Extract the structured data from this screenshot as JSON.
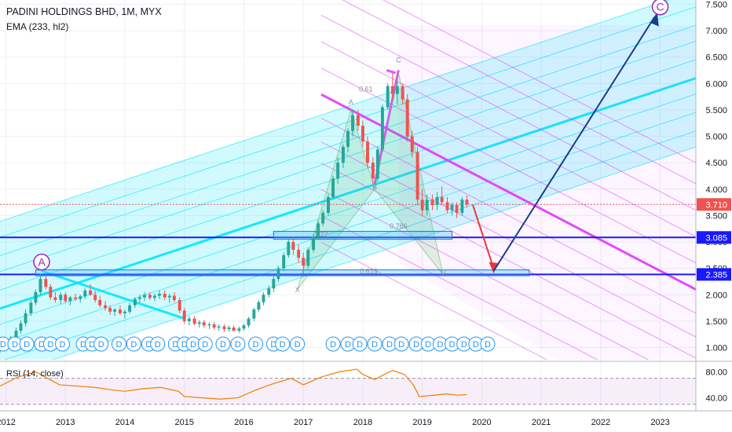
{
  "header": {
    "title": "PADINI HOLDINGS BHD, 1M, MYX",
    "indicator": "EMA (233, hl2)",
    "rsi_label": "RSI (14, close)"
  },
  "colors": {
    "up": "#26a69a",
    "down": "#ef5350",
    "channel_cyan": "#00e5ff",
    "channel_magenta": "#e040fb",
    "support_blue": "#1a1aff",
    "arrow_red": "#e53935",
    "arrow_navy": "#1a3c8f",
    "rsi_line": "#f57c00"
  },
  "chart_data": {
    "type": "candlestick",
    "x_ticks": [
      "2012",
      "2013",
      "2014",
      "2015",
      "2016",
      "2017",
      "2018",
      "2019",
      "2020",
      "2021",
      "2022",
      "2023"
    ],
    "y_ticks": [
      "7.500",
      "7.000",
      "6.500",
      "6.000",
      "5.500",
      "5.000",
      "4.500",
      "4.000",
      "3.500",
      "3.000",
      "2.500",
      "2.000",
      "1.500",
      "1.000"
    ],
    "ylim": [
      0.77,
      7.58
    ],
    "xlim": [
      2011.9,
      2023.6
    ],
    "price_labels": [
      {
        "value": 3.71,
        "text": "3.710",
        "color": "#ef5350"
      },
      {
        "value": 3.085,
        "text": "3.085",
        "color": "#1a1aff"
      },
      {
        "value": 2.385,
        "text": "2.385",
        "color": "#1a1aff"
      }
    ],
    "support_levels": [
      3.085,
      2.385
    ],
    "current_price": 3.71,
    "wave_labels": [
      {
        "text": "A",
        "t": 2012.6,
        "v": 2.62
      },
      {
        "text": "C",
        "t": 2023.0,
        "v": 7.45
      }
    ],
    "pattern_labels": [
      {
        "text": "X",
        "t": 2016.9,
        "v": 2.05
      },
      {
        "text": "A",
        "t": 2017.8,
        "v": 5.6
      },
      {
        "text": "B",
        "t": 2018.2,
        "v": 4.0
      },
      {
        "text": "C",
        "t": 2018.6,
        "v": 6.4
      },
      {
        "text": "D",
        "t": 2019.35,
        "v": 2.38
      },
      {
        "text": "0.618",
        "t": 2018.1,
        "v": 2.4
      },
      {
        "text": "0.786",
        "t": 2018.6,
        "v": 3.25
      },
      {
        "text": "0.61",
        "t": 2018.05,
        "v": 5.85
      },
      {
        "text": "1.27",
        "t": 2017.3,
        "v": 3.1
      }
    ],
    "dividend_marker": "D",
    "candles": [
      {
        "t": 2011.9,
        "o": 0.95,
        "h": 1.05,
        "l": 0.9,
        "c": 1.0
      },
      {
        "t": 2012.0,
        "o": 1.0,
        "h": 1.12,
        "l": 0.96,
        "c": 1.08
      },
      {
        "t": 2012.08,
        "o": 1.08,
        "h": 1.22,
        "l": 1.04,
        "c": 1.18
      },
      {
        "t": 2012.17,
        "o": 1.18,
        "h": 1.38,
        "l": 1.12,
        "c": 1.32
      },
      {
        "t": 2012.25,
        "o": 1.32,
        "h": 1.52,
        "l": 1.26,
        "c": 1.46
      },
      {
        "t": 2012.33,
        "o": 1.46,
        "h": 1.72,
        "l": 1.4,
        "c": 1.65
      },
      {
        "t": 2012.42,
        "o": 1.65,
        "h": 1.9,
        "l": 1.6,
        "c": 1.85
      },
      {
        "t": 2012.5,
        "o": 1.85,
        "h": 2.1,
        "l": 1.8,
        "c": 2.05
      },
      {
        "t": 2012.58,
        "o": 2.05,
        "h": 2.4,
        "l": 2.0,
        "c": 2.3
      },
      {
        "t": 2012.67,
        "o": 2.3,
        "h": 2.35,
        "l": 2.1,
        "c": 2.15
      },
      {
        "t": 2012.75,
        "o": 2.15,
        "h": 2.2,
        "l": 1.9,
        "c": 1.95
      },
      {
        "t": 2012.83,
        "o": 1.95,
        "h": 2.05,
        "l": 1.85,
        "c": 1.9
      },
      {
        "t": 2012.92,
        "o": 1.9,
        "h": 2.05,
        "l": 1.82,
        "c": 2.0
      },
      {
        "t": 2013.0,
        "o": 2.0,
        "h": 2.05,
        "l": 1.85,
        "c": 1.88
      },
      {
        "t": 2013.08,
        "o": 1.88,
        "h": 1.98,
        "l": 1.8,
        "c": 1.95
      },
      {
        "t": 2013.17,
        "o": 1.95,
        "h": 2.02,
        "l": 1.88,
        "c": 1.92
      },
      {
        "t": 2013.25,
        "o": 1.92,
        "h": 2.0,
        "l": 1.85,
        "c": 1.97
      },
      {
        "t": 2013.33,
        "o": 1.97,
        "h": 2.12,
        "l": 1.92,
        "c": 2.08
      },
      {
        "t": 2013.42,
        "o": 2.08,
        "h": 2.2,
        "l": 1.98,
        "c": 2.0
      },
      {
        "t": 2013.5,
        "o": 2.0,
        "h": 2.08,
        "l": 1.85,
        "c": 1.9
      },
      {
        "t": 2013.58,
        "o": 1.9,
        "h": 1.98,
        "l": 1.75,
        "c": 1.8
      },
      {
        "t": 2013.67,
        "o": 1.8,
        "h": 1.88,
        "l": 1.7,
        "c": 1.75
      },
      {
        "t": 2013.75,
        "o": 1.75,
        "h": 1.8,
        "l": 1.62,
        "c": 1.68
      },
      {
        "t": 2013.83,
        "o": 1.68,
        "h": 1.75,
        "l": 1.6,
        "c": 1.72
      },
      {
        "t": 2013.92,
        "o": 1.72,
        "h": 1.8,
        "l": 1.62,
        "c": 1.65
      },
      {
        "t": 2014.0,
        "o": 1.65,
        "h": 1.72,
        "l": 1.55,
        "c": 1.68
      },
      {
        "t": 2014.08,
        "o": 1.68,
        "h": 1.85,
        "l": 1.64,
        "c": 1.8
      },
      {
        "t": 2014.17,
        "o": 1.8,
        "h": 1.95,
        "l": 1.75,
        "c": 1.92
      },
      {
        "t": 2014.25,
        "o": 1.92,
        "h": 2.0,
        "l": 1.85,
        "c": 1.95
      },
      {
        "t": 2014.33,
        "o": 1.95,
        "h": 2.05,
        "l": 1.88,
        "c": 2.0
      },
      {
        "t": 2014.42,
        "o": 2.0,
        "h": 2.05,
        "l": 1.9,
        "c": 1.94
      },
      {
        "t": 2014.5,
        "o": 1.94,
        "h": 2.02,
        "l": 1.88,
        "c": 1.98
      },
      {
        "t": 2014.58,
        "o": 1.98,
        "h": 2.08,
        "l": 1.92,
        "c": 2.02
      },
      {
        "t": 2014.67,
        "o": 2.02,
        "h": 2.08,
        "l": 1.9,
        "c": 1.95
      },
      {
        "t": 2014.75,
        "o": 1.95,
        "h": 2.02,
        "l": 1.85,
        "c": 1.98
      },
      {
        "t": 2014.83,
        "o": 1.98,
        "h": 2.05,
        "l": 1.85,
        "c": 1.9
      },
      {
        "t": 2014.92,
        "o": 1.9,
        "h": 1.95,
        "l": 1.65,
        "c": 1.7
      },
      {
        "t": 2015.0,
        "o": 1.7,
        "h": 1.75,
        "l": 1.45,
        "c": 1.5
      },
      {
        "t": 2015.08,
        "o": 1.5,
        "h": 1.6,
        "l": 1.42,
        "c": 1.55
      },
      {
        "t": 2015.17,
        "o": 1.55,
        "h": 1.6,
        "l": 1.42,
        "c": 1.45
      },
      {
        "t": 2015.25,
        "o": 1.45,
        "h": 1.52,
        "l": 1.38,
        "c": 1.48
      },
      {
        "t": 2015.33,
        "o": 1.48,
        "h": 1.52,
        "l": 1.38,
        "c": 1.42
      },
      {
        "t": 2015.42,
        "o": 1.42,
        "h": 1.48,
        "l": 1.35,
        "c": 1.44
      },
      {
        "t": 2015.5,
        "o": 1.44,
        "h": 1.48,
        "l": 1.34,
        "c": 1.38
      },
      {
        "t": 2015.58,
        "o": 1.38,
        "h": 1.44,
        "l": 1.32,
        "c": 1.4
      },
      {
        "t": 2015.67,
        "o": 1.4,
        "h": 1.44,
        "l": 1.3,
        "c": 1.35
      },
      {
        "t": 2015.75,
        "o": 1.35,
        "h": 1.42,
        "l": 1.3,
        "c": 1.38
      },
      {
        "t": 2015.83,
        "o": 1.38,
        "h": 1.42,
        "l": 1.3,
        "c": 1.32
      },
      {
        "t": 2015.92,
        "o": 1.32,
        "h": 1.4,
        "l": 1.28,
        "c": 1.36
      },
      {
        "t": 2016.0,
        "o": 1.36,
        "h": 1.45,
        "l": 1.32,
        "c": 1.42
      },
      {
        "t": 2016.08,
        "o": 1.42,
        "h": 1.58,
        "l": 1.38,
        "c": 1.55
      },
      {
        "t": 2016.17,
        "o": 1.55,
        "h": 1.75,
        "l": 1.5,
        "c": 1.72
      },
      {
        "t": 2016.25,
        "o": 1.72,
        "h": 1.9,
        "l": 1.68,
        "c": 1.86
      },
      {
        "t": 2016.33,
        "o": 1.86,
        "h": 2.05,
        "l": 1.8,
        "c": 2.0
      },
      {
        "t": 2016.42,
        "o": 2.0,
        "h": 2.18,
        "l": 1.95,
        "c": 2.12
      },
      {
        "t": 2016.5,
        "o": 2.12,
        "h": 2.35,
        "l": 2.05,
        "c": 2.3
      },
      {
        "t": 2016.58,
        "o": 2.3,
        "h": 2.55,
        "l": 2.25,
        "c": 2.5
      },
      {
        "t": 2016.67,
        "o": 2.5,
        "h": 2.8,
        "l": 2.45,
        "c": 2.75
      },
      {
        "t": 2016.75,
        "o": 2.75,
        "h": 3.05,
        "l": 2.7,
        "c": 3.0
      },
      {
        "t": 2016.83,
        "o": 3.0,
        "h": 3.1,
        "l": 2.75,
        "c": 2.85
      },
      {
        "t": 2016.92,
        "o": 2.85,
        "h": 2.95,
        "l": 2.6,
        "c": 2.7
      },
      {
        "t": 2017.0,
        "o": 2.7,
        "h": 2.8,
        "l": 2.4,
        "c": 2.55
      },
      {
        "t": 2017.08,
        "o": 2.55,
        "h": 2.9,
        "l": 2.5,
        "c": 2.85
      },
      {
        "t": 2017.17,
        "o": 2.85,
        "h": 3.15,
        "l": 2.8,
        "c": 3.1
      },
      {
        "t": 2017.25,
        "o": 3.1,
        "h": 3.4,
        "l": 3.05,
        "c": 3.35
      },
      {
        "t": 2017.33,
        "o": 3.35,
        "h": 3.6,
        "l": 3.3,
        "c": 3.55
      },
      {
        "t": 2017.42,
        "o": 3.55,
        "h": 3.9,
        "l": 3.5,
        "c": 3.85
      },
      {
        "t": 2017.5,
        "o": 3.85,
        "h": 4.25,
        "l": 3.8,
        "c": 4.2
      },
      {
        "t": 2017.58,
        "o": 4.2,
        "h": 4.6,
        "l": 4.1,
        "c": 4.5
      },
      {
        "t": 2017.67,
        "o": 4.5,
        "h": 4.85,
        "l": 4.4,
        "c": 4.8
      },
      {
        "t": 2017.75,
        "o": 4.8,
        "h": 5.15,
        "l": 4.7,
        "c": 5.1
      },
      {
        "t": 2017.83,
        "o": 5.1,
        "h": 5.5,
        "l": 5.0,
        "c": 5.4
      },
      {
        "t": 2017.92,
        "o": 5.4,
        "h": 5.5,
        "l": 5.1,
        "c": 5.2
      },
      {
        "t": 2018.0,
        "o": 5.2,
        "h": 5.3,
        "l": 4.8,
        "c": 4.9
      },
      {
        "t": 2018.08,
        "o": 4.9,
        "h": 5.0,
        "l": 4.4,
        "c": 4.5
      },
      {
        "t": 2018.17,
        "o": 4.5,
        "h": 4.6,
        "l": 4.1,
        "c": 4.2
      },
      {
        "t": 2018.25,
        "o": 4.2,
        "h": 4.8,
        "l": 4.15,
        "c": 4.75
      },
      {
        "t": 2018.33,
        "o": 4.75,
        "h": 5.6,
        "l": 4.7,
        "c": 5.55
      },
      {
        "t": 2018.42,
        "o": 5.55,
        "h": 6.0,
        "l": 5.5,
        "c": 5.95
      },
      {
        "t": 2018.5,
        "o": 5.95,
        "h": 6.2,
        "l": 5.7,
        "c": 5.8
      },
      {
        "t": 2018.58,
        "o": 5.8,
        "h": 6.05,
        "l": 5.6,
        "c": 5.95
      },
      {
        "t": 2018.67,
        "o": 5.95,
        "h": 6.0,
        "l": 5.6,
        "c": 5.7
      },
      {
        "t": 2018.75,
        "o": 5.7,
        "h": 5.8,
        "l": 4.9,
        "c": 5.0
      },
      {
        "t": 2018.83,
        "o": 5.0,
        "h": 5.1,
        "l": 4.6,
        "c": 4.7
      },
      {
        "t": 2018.92,
        "o": 4.7,
        "h": 4.8,
        "l": 3.7,
        "c": 3.8
      },
      {
        "t": 2019.0,
        "o": 3.8,
        "h": 4.0,
        "l": 3.5,
        "c": 3.6
      },
      {
        "t": 2019.08,
        "o": 3.6,
        "h": 3.9,
        "l": 3.5,
        "c": 3.8
      },
      {
        "t": 2019.17,
        "o": 3.8,
        "h": 3.9,
        "l": 3.6,
        "c": 3.7
      },
      {
        "t": 2019.25,
        "o": 3.7,
        "h": 3.95,
        "l": 3.6,
        "c": 3.85
      },
      {
        "t": 2019.33,
        "o": 3.85,
        "h": 4.05,
        "l": 3.7,
        "c": 3.75
      },
      {
        "t": 2019.42,
        "o": 3.75,
        "h": 3.85,
        "l": 3.55,
        "c": 3.6
      },
      {
        "t": 2019.5,
        "o": 3.6,
        "h": 3.75,
        "l": 3.5,
        "c": 3.7
      },
      {
        "t": 2019.58,
        "o": 3.7,
        "h": 3.75,
        "l": 3.45,
        "c": 3.55
      },
      {
        "t": 2019.67,
        "o": 3.55,
        "h": 3.85,
        "l": 3.5,
        "c": 3.8
      },
      {
        "t": 2019.75,
        "o": 3.8,
        "h": 3.88,
        "l": 3.65,
        "c": 3.71
      }
    ],
    "rsi": {
      "ylim": [
        20,
        95
      ],
      "y_ticks": [
        "80.00",
        "40.00"
      ],
      "levels": [
        70,
        30
      ],
      "points": [
        [
          2011.9,
          58
        ],
        [
          2012.2,
          72
        ],
        [
          2012.5,
          80
        ],
        [
          2012.7,
          70
        ],
        [
          2012.9,
          60
        ],
        [
          2013.2,
          58
        ],
        [
          2013.5,
          56
        ],
        [
          2013.8,
          52
        ],
        [
          2014.0,
          50
        ],
        [
          2014.3,
          54
        ],
        [
          2014.6,
          56
        ],
        [
          2014.9,
          50
        ],
        [
          2015.0,
          42
        ],
        [
          2015.3,
          40
        ],
        [
          2015.6,
          38
        ],
        [
          2015.9,
          40
        ],
        [
          2016.2,
          52
        ],
        [
          2016.5,
          62
        ],
        [
          2016.8,
          70
        ],
        [
          2017.0,
          60
        ],
        [
          2017.3,
          72
        ],
        [
          2017.6,
          80
        ],
        [
          2017.9,
          84
        ],
        [
          2018.0,
          76
        ],
        [
          2018.2,
          68
        ],
        [
          2018.4,
          78
        ],
        [
          2018.5,
          82
        ],
        [
          2018.7,
          76
        ],
        [
          2018.85,
          60
        ],
        [
          2018.95,
          42
        ],
        [
          2019.2,
          44
        ],
        [
          2019.4,
          46
        ],
        [
          2019.6,
          44
        ],
        [
          2019.75,
          45
        ]
      ]
    }
  }
}
